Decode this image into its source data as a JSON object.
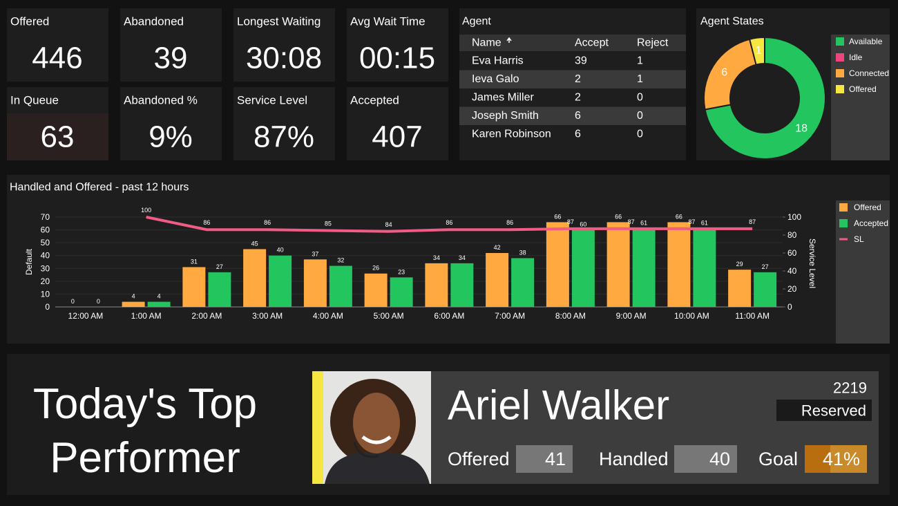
{
  "tiles": [
    {
      "label": "Offered",
      "value": "446"
    },
    {
      "label": "Abandoned",
      "value": "39"
    },
    {
      "label": "Longest Waiting",
      "value": "30:08"
    },
    {
      "label": "Avg Wait Time",
      "value": "00:15"
    },
    {
      "label": "In Queue",
      "value": "63"
    },
    {
      "label": "Abandoned %",
      "value": "9%"
    },
    {
      "label": "Service Level",
      "value": "87%"
    },
    {
      "label": "Accepted",
      "value": "407"
    }
  ],
  "agents": {
    "title": "Agent",
    "columns": [
      "Name",
      "Accept",
      "Reject"
    ],
    "rows": [
      [
        "Eva Harris",
        "39",
        "1"
      ],
      [
        "Ieva Galo",
        "2",
        "1"
      ],
      [
        "James Miller",
        "2",
        "0"
      ],
      [
        "Joseph Smith",
        "6",
        "0"
      ],
      [
        "Karen Robinson",
        "6",
        "0"
      ]
    ]
  },
  "chart_data": [
    {
      "type": "donut",
      "title": "Agent States",
      "categories": [
        "Available",
        "Idle",
        "Connected",
        "Offered"
      ],
      "values": [
        18,
        0,
        6,
        1
      ],
      "colors": [
        "#22c55e",
        "#f0457a",
        "#ffa940",
        "#f5e642"
      ],
      "legend": "right"
    },
    {
      "type": "bar",
      "title": "Handled and Offered - past 12 hours",
      "categories": [
        "12:00 AM",
        "1:00 AM",
        "2:00 AM",
        "3:00 AM",
        "4:00 AM",
        "5:00 AM",
        "6:00 AM",
        "7:00 AM",
        "8:00 AM",
        "9:00 AM",
        "10:00 AM",
        "11:00 AM"
      ],
      "series": [
        {
          "name": "Offered",
          "color": "#ffa940",
          "values": [
            0,
            4,
            31,
            45,
            37,
            26,
            34,
            42,
            66,
            66,
            66,
            29
          ]
        },
        {
          "name": "Accepted",
          "color": "#22c55e",
          "values": [
            0,
            4,
            27,
            40,
            32,
            23,
            34,
            38,
            60,
            61,
            61,
            27
          ]
        },
        {
          "name": "SL",
          "type": "line",
          "axis": "y2",
          "color": "#f25c84",
          "values": [
            null,
            100,
            86,
            86,
            85,
            84,
            86,
            86,
            87,
            87,
            87,
            87
          ]
        }
      ],
      "ylabel": "Default",
      "y2label": "Service Level",
      "ylim": [
        0,
        70
      ],
      "yticks": [
        0,
        10,
        20,
        30,
        40,
        50,
        60,
        70
      ],
      "y2lim": [
        0,
        100
      ],
      "y2ticks": [
        0,
        20,
        40,
        60,
        80,
        100
      ],
      "grid": true,
      "legend": "right"
    }
  ],
  "top_performer": {
    "title": "Today's Top Performer",
    "name": "Ariel Walker",
    "id": "2219",
    "status": "Reserved",
    "stats": [
      {
        "label": "Offered",
        "value": "41"
      },
      {
        "label": "Handled",
        "value": "40"
      },
      {
        "label": "Goal",
        "value": "41%"
      }
    ]
  }
}
